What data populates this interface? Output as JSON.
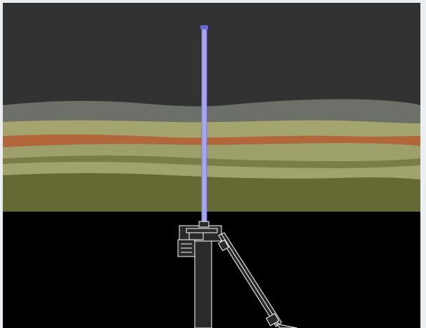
{
  "scene": {
    "description_type": "3d-viewport-render",
    "colors": {
      "sky": "#323232",
      "horizon_band": "#6d7069",
      "layer_light_olive": "#a4a56e",
      "layer_orange": "#b2673a",
      "layer_mid_olive": "#9ea06b",
      "layer_dark_olive": "#6f7440",
      "layer_base_olive": "#656a35",
      "ground": "#000000",
      "wellbore": "#a7a7ef",
      "wellbore_tip": "#6a6ad6",
      "rig_outline": "#ffffff",
      "rig_fill": "#2a2a2a"
    },
    "objects": [
      {
        "name": "wellbore",
        "kind": "vertical-pipe"
      },
      {
        "name": "rig-base",
        "kind": "drilling-rig-wireframe"
      },
      {
        "name": "rig-arm",
        "kind": "angled-boom-wireframe"
      }
    ]
  }
}
